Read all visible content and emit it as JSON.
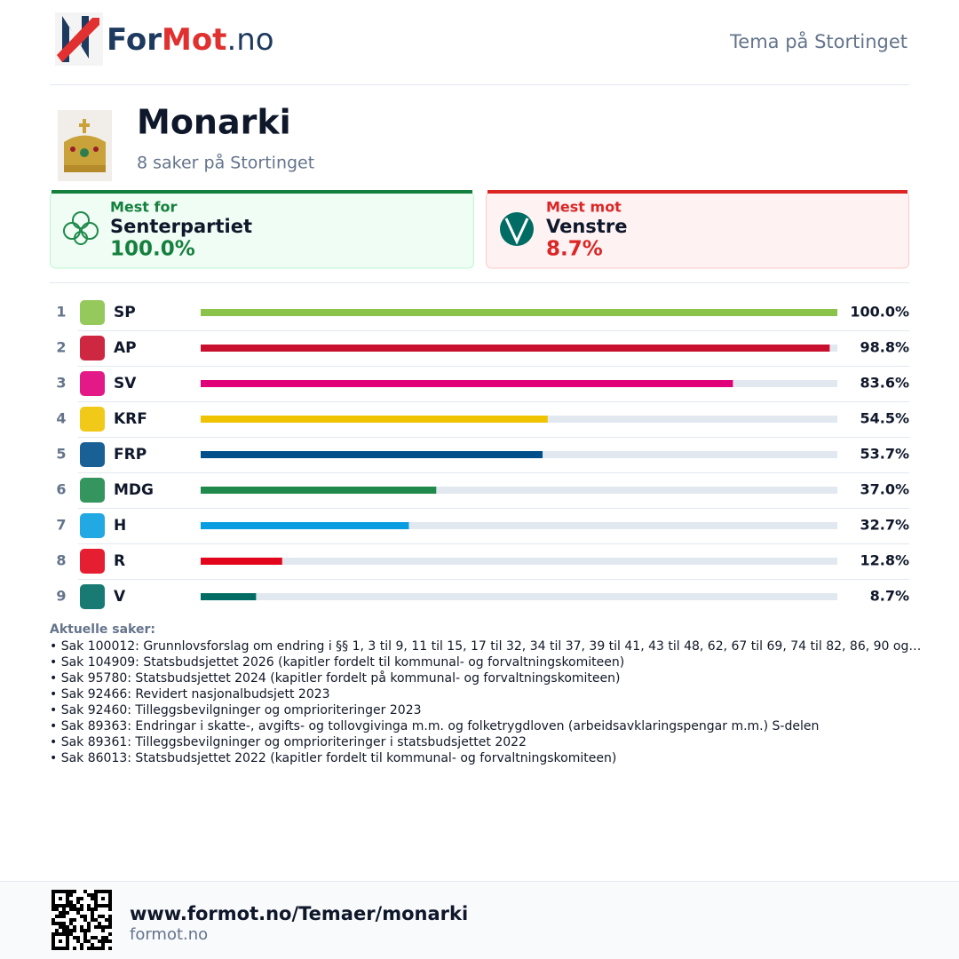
{
  "header": {
    "brand": [
      "For",
      "Mot",
      ".no"
    ],
    "section": "Tema på Stortinget"
  },
  "topic": {
    "title": "Monarki",
    "subtitle": "8 saker på Stortinget"
  },
  "highlights": {
    "most_for": {
      "label": "Mest for",
      "party": "Senterpartiet",
      "value": "100.0%"
    },
    "most_against": {
      "label": "Mest mot",
      "party": "Venstre",
      "value": "8.7%"
    }
  },
  "ranking": {
    "ranks": [
      1,
      2,
      3,
      4,
      5,
      6,
      7,
      8,
      9
    ],
    "parties": [
      "SP",
      "AP",
      "SV",
      "KRF",
      "FRP",
      "MDG",
      "H",
      "R",
      "V"
    ],
    "values": [
      100.0,
      98.8,
      83.6,
      54.5,
      53.7,
      37.0,
      32.7,
      12.8,
      8.7
    ],
    "value_labels": [
      "100.0%",
      "98.8%",
      "83.6%",
      "54.5%",
      "53.7%",
      "37.0%",
      "32.7%",
      "12.8%",
      "8.7%"
    ],
    "colors": [
      "#8bc34a",
      "#c8102e",
      "#e0007a",
      "#f0c300",
      "#004f8b",
      "#1f8a4c",
      "#0a9ee0",
      "#e3051b",
      "#006c64"
    ],
    "xlim": [
      0,
      100
    ]
  },
  "cases": {
    "title": "Aktuelle saker:",
    "items": [
      "• Sak 100012: Grunnlovsforslag om endring i §§ 1, 3 til 9, 11 til 15, 17 til 32, 34 til 37, 39 til 41, 43 til 48, 62, 67 til 69, 74 til 82, 86, 90 og…",
      "• Sak 104909: Statsbudsjettet 2026 (kapitler fordelt til kommunal- og forvaltningskomiteen)",
      "• Sak 95780: Statsbudsjettet 2024 (kapitler fordelt på kommunal- og forvaltningskomiteen)",
      "• Sak 92466: Revidert nasjonalbudsjett 2023",
      "• Sak 92460: Tilleggsbevilgninger og omprioriteringer 2023",
      "• Sak 89363: Endringar i skatte-, avgifts- og tollovgivinga m.m. og folketrygdloven (arbeidsavklaringspengar m.m.) S-delen",
      "• Sak 89361: Tilleggsbevilgninger og omprioriteringer i statsbudsjettet 2022",
      "• Sak 86013: Statsbudsjettet 2022 (kapitler fordelt til kommunal- og forvaltningskomiteen)"
    ]
  },
  "footer": {
    "url": "www.formot.no/Temaer/monarki",
    "domain": "formot.no"
  }
}
